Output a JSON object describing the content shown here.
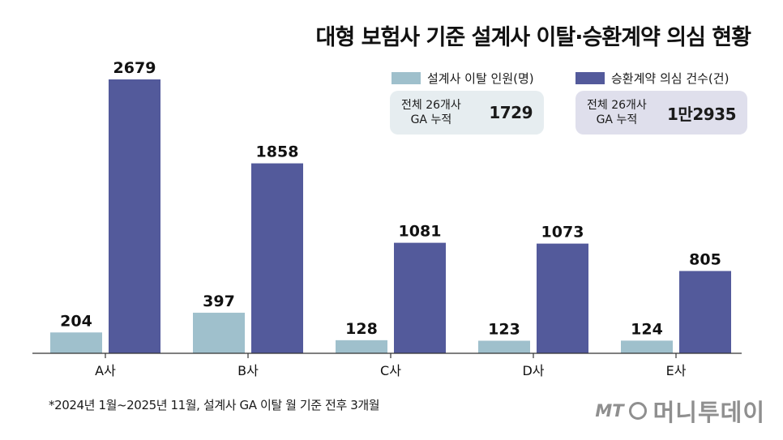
{
  "title": "대형 보험사 기준 설계사 이탈·승환계약 의심 현황",
  "colors": {
    "series1": "#9fc0cc",
    "series2": "#535a9b",
    "box1": "#e6edf0",
    "box2": "#dfdfec",
    "axis": "#333333"
  },
  "legend": {
    "series1_label": "설계사 이탈 인원(명)",
    "series2_label": "승환계약 의심 건수(건)"
  },
  "summary": [
    {
      "label": "전체 26개사\nGA 누적",
      "value": "1729"
    },
    {
      "label": "전체 26개사\nGA 누적",
      "value": "1만2935"
    }
  ],
  "footnote": "*2024년 1월~2025년 11월, 설계사 GA 이탈 월 기준 전후 3개월",
  "watermark": {
    "logo": "MT",
    "name": "머니투데이"
  },
  "chart_data": {
    "type": "bar",
    "title": "대형 보험사 기준 설계사 이탈·승환계약 의심 현황",
    "categories": [
      "A사",
      "B사",
      "C사",
      "D사",
      "E사"
    ],
    "series": [
      {
        "name": "설계사 이탈 인원(명)",
        "values": [
          204,
          397,
          128,
          123,
          124
        ]
      },
      {
        "name": "승환계약 의심 건수(건)",
        "values": [
          2679,
          1858,
          1081,
          1073,
          805
        ]
      }
    ],
    "ylim": [
      0,
      2679
    ],
    "grid": false,
    "legend_position": "top-right"
  }
}
